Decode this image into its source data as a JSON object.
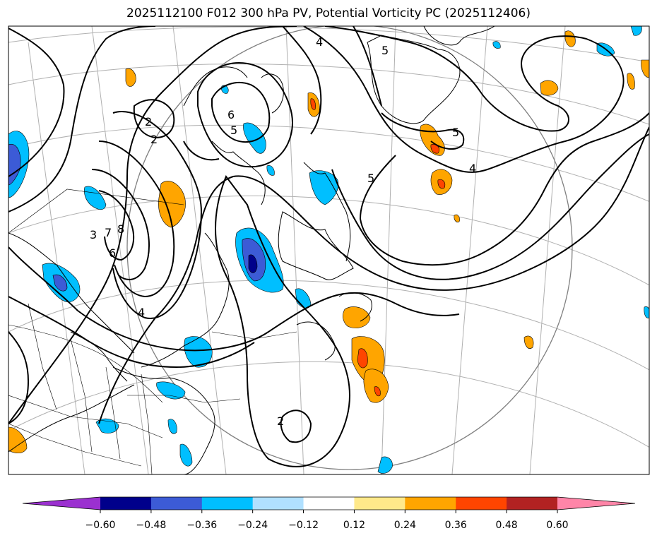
{
  "title": "2025112100 F012 300 hPa PV, Potential Vorticity PC (2025112406)",
  "contour_labels": [
    "4",
    "5",
    "5",
    "6",
    "5",
    "2",
    "2",
    "3",
    "7",
    "8",
    "6",
    "4",
    "5",
    "4",
    "2"
  ],
  "colorbar": {
    "ticks": [
      "−0.60",
      "−0.48",
      "−0.36",
      "−0.24",
      "−0.12",
      "0.12",
      "0.24",
      "0.36",
      "0.48",
      "0.60"
    ],
    "colors": {
      "under": "#9b30d0",
      "bins": [
        "#00008b",
        "#3c5bd6",
        "#00bfff",
        "#b0e0ff",
        "#ffffff",
        "#ffe98a",
        "#ffa500",
        "#ff4500",
        "#b22222"
      ],
      "over": "#ff85a8"
    }
  }
}
